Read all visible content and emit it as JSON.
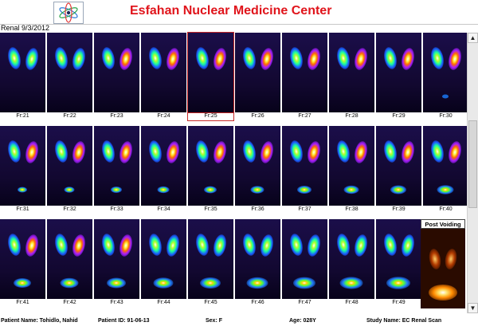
{
  "app": {
    "title": "Esfahan Nuclear Medicine Center",
    "study": "Renal 9/3/2012"
  },
  "frames": [
    {
      "label": "Fr:21"
    },
    {
      "label": "Fr:22"
    },
    {
      "label": "Fr:23"
    },
    {
      "label": "Fr:24"
    },
    {
      "label": "Fr:25"
    },
    {
      "label": "Fr:26"
    },
    {
      "label": "Fr:27"
    },
    {
      "label": "Fr:28"
    },
    {
      "label": "Fr:29"
    },
    {
      "label": "Fr:30"
    },
    {
      "label": "Fr:31"
    },
    {
      "label": "Fr:32"
    },
    {
      "label": "Fr:33"
    },
    {
      "label": "Fr:34"
    },
    {
      "label": "Fr:35"
    },
    {
      "label": "Fr:36"
    },
    {
      "label": "Fr:37"
    },
    {
      "label": "Fr:38"
    },
    {
      "label": "Fr:39"
    },
    {
      "label": "Fr:40"
    },
    {
      "label": "Fr:41"
    },
    {
      "label": "Fr:42"
    },
    {
      "label": "Fr:43"
    },
    {
      "label": "Fr:44"
    },
    {
      "label": "Fr:45"
    },
    {
      "label": "Fr:46"
    },
    {
      "label": "Fr:47"
    },
    {
      "label": "Fr:48"
    },
    {
      "label": "Fr:49"
    }
  ],
  "post_voiding": {
    "label": "Post Voiding"
  },
  "footer": {
    "patient_name": "Patient Name: Tohidlo, Nahid",
    "patient_id": "Patient ID: 91-06-13",
    "sex": "Sex: F",
    "age": "Age: 028Y",
    "study_name": "Study Name: EC Renal Scan"
  },
  "colors": {
    "title_red": "#e0141b",
    "selected_border": "#c62828"
  }
}
